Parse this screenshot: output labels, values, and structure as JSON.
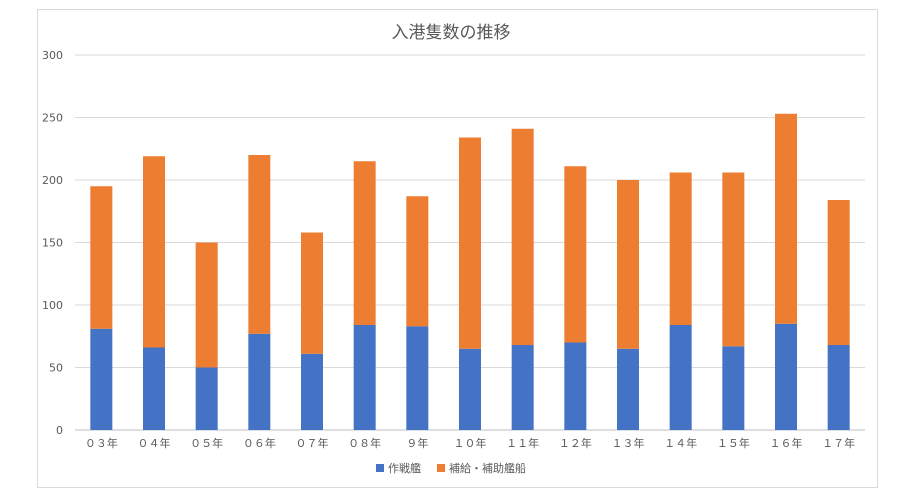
{
  "chart_data": {
    "type": "bar",
    "stacked": true,
    "title": "入港隻数の推移",
    "categories": [
      "０３年",
      "０４年",
      "０５年",
      "０６年",
      "０７年",
      "０８年",
      "９年",
      "１０年",
      "１１年",
      "１２年",
      "１３年",
      "１４年",
      "１５年",
      "１６年",
      "１７年"
    ],
    "series": [
      {
        "name": "作戦艦",
        "color": "#4472c4",
        "values": [
          81,
          66,
          50,
          77,
          61,
          84,
          83,
          65,
          68,
          70,
          65,
          84,
          67,
          85,
          68
        ]
      },
      {
        "name": "補給・補助艦船",
        "color": "#ed7d31",
        "values": [
          114,
          153,
          100,
          143,
          97,
          131,
          104,
          169,
          173,
          141,
          135,
          122,
          139,
          168,
          116
        ]
      }
    ],
    "ylim": [
      0,
      300
    ],
    "yticks": [
      "0",
      "50",
      "100",
      "150",
      "200",
      "250",
      "300"
    ],
    "grid": true,
    "legend": "bottom"
  }
}
